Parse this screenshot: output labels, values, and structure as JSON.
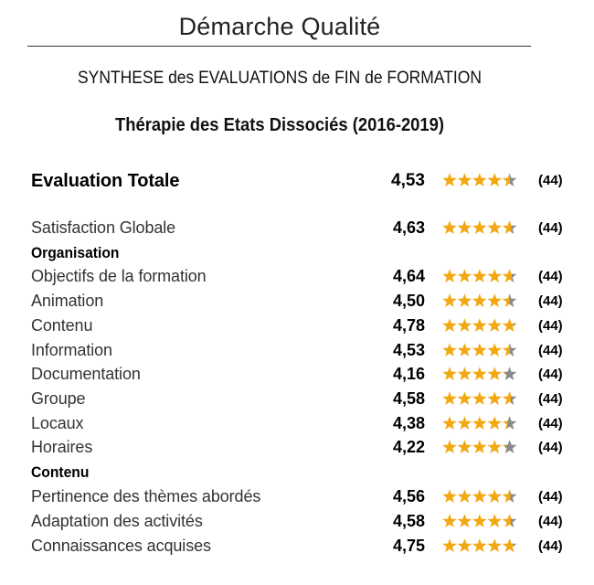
{
  "header": {
    "title": "Démarche Qualité"
  },
  "document": {
    "title": "SYNTHESE des EVALUATIONS de FIN de FORMATION",
    "subtitle": "Thérapie des Etats Dissociés (2016-2019)"
  },
  "colors": {
    "star_filled": "#f2a812",
    "star_empty": "#8a8a8a"
  },
  "total": {
    "label": "Evaluation Totale",
    "score": "4,53",
    "rating": 4.53,
    "count": "(44)"
  },
  "satisfaction": {
    "label": "Satisfaction Globale",
    "score": "4,63",
    "rating": 4.63,
    "count": "(44)"
  },
  "organisation": {
    "heading": "Organisation",
    "items": [
      {
        "label": "Objectifs de la formation",
        "score": "4,64",
        "rating": 4.64,
        "count": "(44)"
      },
      {
        "label": "Animation",
        "score": "4,50",
        "rating": 4.5,
        "count": "(44)"
      },
      {
        "label": "Contenu",
        "score": "4,78",
        "rating": 4.78,
        "count": "(44)"
      },
      {
        "label": "Information",
        "score": "4,53",
        "rating": 4.53,
        "count": "(44)"
      },
      {
        "label": "Documentation",
        "score": "4,16",
        "rating": 4.16,
        "count": "(44)"
      },
      {
        "label": "Groupe",
        "score": "4,58",
        "rating": 4.58,
        "count": "(44)"
      },
      {
        "label": "Locaux",
        "score": "4,38",
        "rating": 4.38,
        "count": "(44)"
      },
      {
        "label": "Horaires",
        "score": "4,22",
        "rating": 4.22,
        "count": "(44)"
      }
    ]
  },
  "contenu": {
    "heading": "Contenu",
    "items": [
      {
        "label": "Pertinence des thèmes abordés",
        "score": "4,56",
        "rating": 4.56,
        "count": "(44)"
      },
      {
        "label": "Adaptation des activités",
        "score": "4,58",
        "rating": 4.58,
        "count": "(44)"
      },
      {
        "label": "Connaissances acquises",
        "score": "4,75",
        "rating": 4.75,
        "count": "(44)"
      }
    ]
  }
}
